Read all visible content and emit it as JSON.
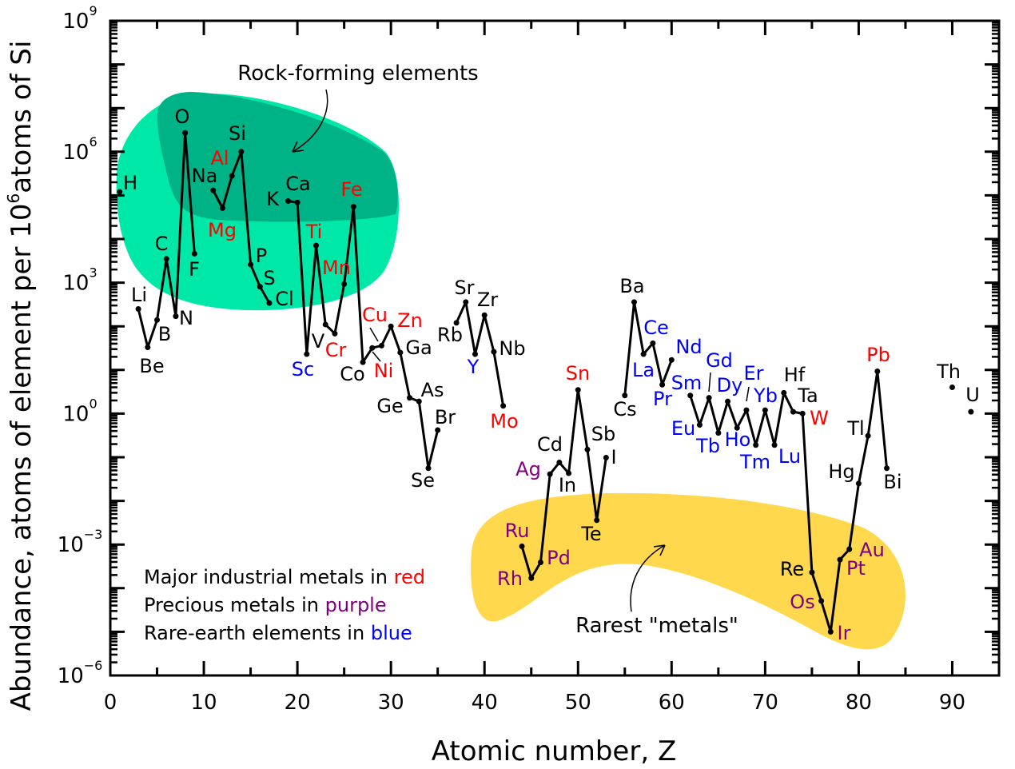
{
  "chart_data": {
    "type": "line",
    "xlabel": "Atomic number, Z",
    "ylabel": {
      "prefix": "Abundance, atoms of element per 10",
      "sup": "6",
      "suffix": "atoms of Si"
    },
    "xlim": [
      0,
      95
    ],
    "ylim": [
      1e-06,
      1000000000.0
    ],
    "yscale": "log",
    "x_ticks": [
      "0",
      "10",
      "20",
      "30",
      "40",
      "50",
      "60",
      "70",
      "80",
      "90"
    ],
    "y_ticks": [
      {
        "base": "10",
        "exp": "9"
      },
      {
        "base": "10",
        "exp": "6"
      },
      {
        "base": "10",
        "exp": "3"
      },
      {
        "base": "10",
        "exp": "0"
      },
      {
        "base": "10",
        "exp": "−3"
      },
      {
        "base": "10",
        "exp": "−6"
      }
    ],
    "grid": false,
    "colors": {
      "line": "#000000",
      "industrial": "#ff0000",
      "precious": "#800080",
      "rare_earth": "#0000ff",
      "rock_light": "#00e8a8",
      "rock_dark": "#00b386",
      "rarest": "#ffd84d"
    },
    "connected_runs": [
      [
        3,
        9
      ],
      [
        11,
        17
      ],
      [
        19,
        35
      ],
      [
        37,
        42
      ],
      [
        44,
        53
      ],
      [
        55,
        60
      ],
      [
        62,
        83
      ]
    ],
    "elements": [
      {
        "symbol": "H",
        "z": 1,
        "abundance": 120000.0
      },
      {
        "symbol": "Li",
        "z": 3,
        "abundance": 250
      },
      {
        "symbol": "Be",
        "z": 4,
        "abundance": 33
      },
      {
        "symbol": "B",
        "z": 5,
        "abundance": 140
      },
      {
        "symbol": "C",
        "z": 6,
        "abundance": 3500
      },
      {
        "symbol": "N",
        "z": 7,
        "abundance": 170
      },
      {
        "symbol": "O",
        "z": 8,
        "abundance": 2700000.0
      },
      {
        "symbol": "F",
        "z": 9,
        "abundance": 4600
      },
      {
        "symbol": "Na",
        "z": 11,
        "abundance": 130000.0
      },
      {
        "symbol": "Mg",
        "z": 12,
        "abundance": 51000.0,
        "group": "industrial"
      },
      {
        "symbol": "Al",
        "z": 13,
        "abundance": 280000.0,
        "group": "industrial"
      },
      {
        "symbol": "Si",
        "z": 14,
        "abundance": 1000000.0
      },
      {
        "symbol": "P",
        "z": 15,
        "abundance": 2600
      },
      {
        "symbol": "S",
        "z": 16,
        "abundance": 810
      },
      {
        "symbol": "Cl",
        "z": 17,
        "abundance": 340
      },
      {
        "symbol": "K",
        "z": 19,
        "abundance": 74000.0
      },
      {
        "symbol": "Ca",
        "z": 20,
        "abundance": 69000.0
      },
      {
        "symbol": "Sc",
        "z": 21,
        "abundance": 23,
        "group": "rare_earth"
      },
      {
        "symbol": "Ti",
        "z": 22,
        "abundance": 7100,
        "group": "industrial"
      },
      {
        "symbol": "V",
        "z": 23,
        "abundance": 110
      },
      {
        "symbol": "Cr",
        "z": 24,
        "abundance": 68,
        "group": "industrial"
      },
      {
        "symbol": "Mn",
        "z": 25,
        "abundance": 930,
        "group": "industrial"
      },
      {
        "symbol": "Fe",
        "z": 26,
        "abundance": 55000.0,
        "group": "industrial"
      },
      {
        "symbol": "Co",
        "z": 27,
        "abundance": 15
      },
      {
        "symbol": "Ni",
        "z": 28,
        "abundance": 32,
        "group": "industrial"
      },
      {
        "symbol": "Cu",
        "z": 29,
        "abundance": 36,
        "group": "industrial"
      },
      {
        "symbol": "Zn",
        "z": 30,
        "abundance": 100,
        "group": "industrial"
      },
      {
        "symbol": "Ga",
        "z": 31,
        "abundance": 25
      },
      {
        "symbol": "Ge",
        "z": 32,
        "abundance": 2.3
      },
      {
        "symbol": "As",
        "z": 33,
        "abundance": 1.9
      },
      {
        "symbol": "Se",
        "z": 34,
        "abundance": 0.056
      },
      {
        "symbol": "Br",
        "z": 35,
        "abundance": 0.42
      },
      {
        "symbol": "Rb",
        "z": 37,
        "abundance": 120
      },
      {
        "symbol": "Sr",
        "z": 38,
        "abundance": 360
      },
      {
        "symbol": "Y",
        "z": 39,
        "abundance": 23,
        "group": "rare_earth"
      },
      {
        "symbol": "Zr",
        "z": 40,
        "abundance": 180
      },
      {
        "symbol": "Nb",
        "z": 41,
        "abundance": 26
      },
      {
        "symbol": "Mo",
        "z": 42,
        "abundance": 1.5,
        "group": "industrial"
      },
      {
        "symbol": "Ru",
        "z": 44,
        "abundance": 0.00091,
        "group": "precious"
      },
      {
        "symbol": "Rh",
        "z": 45,
        "abundance": 0.00017,
        "group": "precious"
      },
      {
        "symbol": "Pd",
        "z": 46,
        "abundance": 0.00039,
        "group": "precious"
      },
      {
        "symbol": "Ag",
        "z": 47,
        "abundance": 0.041,
        "group": "precious"
      },
      {
        "symbol": "Cd",
        "z": 48,
        "abundance": 0.076
      },
      {
        "symbol": "In",
        "z": 49,
        "abundance": 0.043
      },
      {
        "symbol": "Sn",
        "z": 50,
        "abundance": 3.5,
        "group": "industrial"
      },
      {
        "symbol": "Sb",
        "z": 51,
        "abundance": 0.15
      },
      {
        "symbol": "Te",
        "z": 52,
        "abundance": 0.0036
      },
      {
        "symbol": "I",
        "z": 53,
        "abundance": 0.098
      },
      {
        "symbol": "Cs",
        "z": 55,
        "abundance": 2.6
      },
      {
        "symbol": "Ba",
        "z": 56,
        "abundance": 360
      },
      {
        "symbol": "La",
        "z": 57,
        "abundance": 23,
        "group": "rare_earth"
      },
      {
        "symbol": "Ce",
        "z": 58,
        "abundance": 41,
        "group": "rare_earth"
      },
      {
        "symbol": "Pr",
        "z": 59,
        "abundance": 4.6,
        "group": "rare_earth"
      },
      {
        "symbol": "Nd",
        "z": 60,
        "abundance": 17,
        "group": "rare_earth"
      },
      {
        "symbol": "Sm",
        "z": 62,
        "abundance": 2.6,
        "group": "rare_earth"
      },
      {
        "symbol": "Eu",
        "z": 63,
        "abundance": 0.55,
        "group": "rare_earth"
      },
      {
        "symbol": "Gd",
        "z": 64,
        "abundance": 2.3,
        "group": "rare_earth"
      },
      {
        "symbol": "Tb",
        "z": 65,
        "abundance": 0.36,
        "group": "rare_earth"
      },
      {
        "symbol": "Dy",
        "z": 66,
        "abundance": 1.9,
        "group": "rare_earth"
      },
      {
        "symbol": "Ho",
        "z": 67,
        "abundance": 0.47,
        "group": "rare_earth"
      },
      {
        "symbol": "Er",
        "z": 68,
        "abundance": 1.2,
        "group": "rare_earth"
      },
      {
        "symbol": "Tm",
        "z": 69,
        "abundance": 0.19,
        "group": "rare_earth"
      },
      {
        "symbol": "Yb",
        "z": 70,
        "abundance": 1.2,
        "group": "rare_earth"
      },
      {
        "symbol": "Lu",
        "z": 71,
        "abundance": 0.19,
        "group": "rare_earth"
      },
      {
        "symbol": "Hf",
        "z": 72,
        "abundance": 3.0
      },
      {
        "symbol": "Ta",
        "z": 73,
        "abundance": 1.1
      },
      {
        "symbol": "W",
        "z": 74,
        "abundance": 1.0,
        "group": "industrial"
      },
      {
        "symbol": "Re",
        "z": 75,
        "abundance": 0.00023
      },
      {
        "symbol": "Os",
        "z": 76,
        "abundance": 5.1e-05,
        "group": "precious"
      },
      {
        "symbol": "Ir",
        "z": 77,
        "abundance": 1e-05,
        "group": "precious"
      },
      {
        "symbol": "Pt",
        "z": 78,
        "abundance": 0.00045,
        "group": "precious"
      },
      {
        "symbol": "Au",
        "z": 79,
        "abundance": 0.00078,
        "group": "precious"
      },
      {
        "symbol": "Hg",
        "z": 80,
        "abundance": 0.025
      },
      {
        "symbol": "Tl",
        "z": 81,
        "abundance": 0.31
      },
      {
        "symbol": "Pb",
        "z": 82,
        "abundance": 9.3,
        "group": "industrial"
      },
      {
        "symbol": "Bi",
        "z": 83,
        "abundance": 0.056
      },
      {
        "symbol": "Th",
        "z": 90,
        "abundance": 4.0
      },
      {
        "symbol": "U",
        "z": 92,
        "abundance": 1.1
      }
    ],
    "annotations": {
      "rock_forming": "Rock-forming elements",
      "rarest": "Rarest \"metals\""
    },
    "legend": [
      {
        "text": "Major industrial metals in ",
        "keyword": "red",
        "group": "industrial"
      },
      {
        "text": "Precious metals in ",
        "keyword": "purple",
        "group": "precious"
      },
      {
        "text": "Rare-earth elements in ",
        "keyword": "blue",
        "group": "rare_earth"
      }
    ]
  }
}
